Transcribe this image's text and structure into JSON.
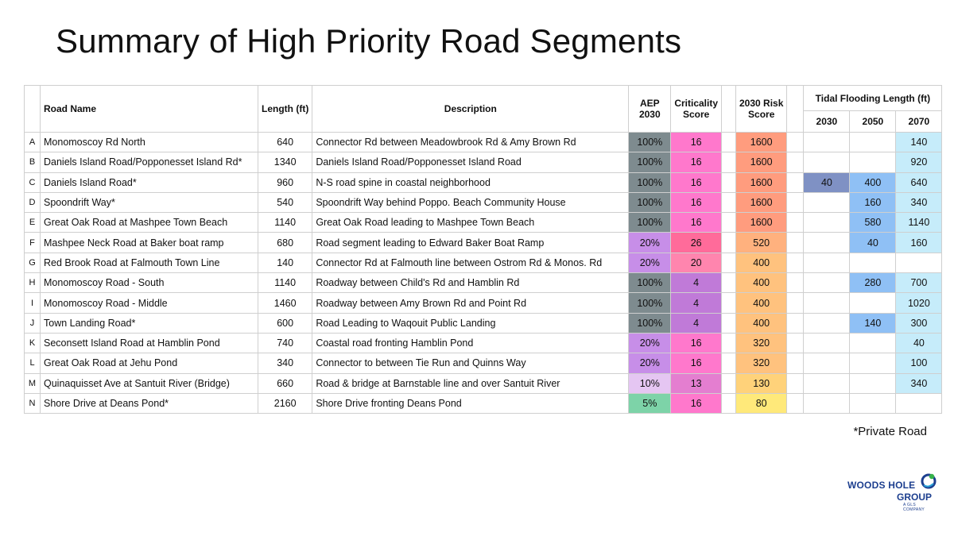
{
  "title": "Summary of High Priority Road Segments",
  "colors": {
    "aep_100": "#7e8b8f",
    "aep_20": "#c78ee8",
    "aep_10": "#e5c6f2",
    "aep_5": "#7dd3a8",
    "crit_16": "#ff78cc",
    "crit_26": "#ff6b9a",
    "crit_20": "#ff85ae",
    "crit_4": "#c07ad8",
    "crit_13": "#e47ed0",
    "risk_1600": "#ff9c7e",
    "risk_520": "#ffb17e",
    "risk_400": "#ffc27e",
    "risk_320": "#ffc27e",
    "risk_130": "#ffd27a",
    "risk_80": "#ffe97a",
    "tf_dark": "#7f91c4",
    "tf_mid": "#8fc0f5",
    "tf_light": "#c6ecfa"
  },
  "headers": {
    "road_name": "Road Name",
    "length": "Length (ft)",
    "description": "Description",
    "aep_line1": "AEP",
    "aep_line2": "2030",
    "crit_line1": "Criticality",
    "crit_line2": "Score",
    "risk_line1": "2030 Risk",
    "risk_line2": "Score",
    "tidal": "Tidal Flooding Length (ft)",
    "y2030": "2030",
    "y2050": "2050",
    "y2070": "2070"
  },
  "rows": [
    {
      "id": "A",
      "name": "Monomoscoy Rd North",
      "length": "640",
      "desc": "Connector Rd between Meadowbrook Rd & Amy Brown Rd",
      "aep": "100%",
      "crit": "16",
      "risk": "1600",
      "t2030": "",
      "t2050": "",
      "t2070": "140"
    },
    {
      "id": "B",
      "name": "Daniels Island Road/Popponesset Island Rd*",
      "length": "1340",
      "desc": "Daniels Island Road/Popponesset Island Road",
      "aep": "100%",
      "crit": "16",
      "risk": "1600",
      "t2030": "",
      "t2050": "",
      "t2070": "920"
    },
    {
      "id": "C",
      "name": "Daniels Island Road*",
      "length": "960",
      "desc": "N-S road spine in coastal neighborhood",
      "aep": "100%",
      "crit": "16",
      "risk": "1600",
      "t2030": "40",
      "t2050": "400",
      "t2070": "640"
    },
    {
      "id": "D",
      "name": "Spoondrift Way*",
      "length": "540",
      "desc": "Spoondrift Way behind Poppo. Beach Community House",
      "aep": "100%",
      "crit": "16",
      "risk": "1600",
      "t2030": "",
      "t2050": "160",
      "t2070": "340"
    },
    {
      "id": "E",
      "name": "Great Oak Road at Mashpee Town Beach",
      "length": "1140",
      "desc": "Great Oak Road leading to Mashpee Town Beach",
      "aep": "100%",
      "crit": "16",
      "risk": "1600",
      "t2030": "",
      "t2050": "580",
      "t2070": "1140"
    },
    {
      "id": "F",
      "name": "Mashpee Neck Road at Baker boat ramp",
      "length": "680",
      "desc": "Road segment leading  to Edward Baker Boat Ramp",
      "aep": "20%",
      "crit": "26",
      "risk": "520",
      "t2030": "",
      "t2050": "40",
      "t2070": "160"
    },
    {
      "id": "G",
      "name": "Red Brook Road at Falmouth Town Line",
      "length": "140",
      "desc": "Connector Rd at Falmouth line between Ostrom Rd & Monos. Rd",
      "aep": "20%",
      "crit": "20",
      "risk": "400",
      "t2030": "",
      "t2050": "",
      "t2070": ""
    },
    {
      "id": "H",
      "name": "Monomoscoy Road - South",
      "length": "1140",
      "desc": "Roadway between Child's Rd and Hamblin Rd",
      "aep": "100%",
      "crit": "4",
      "risk": "400",
      "t2030": "",
      "t2050": "280",
      "t2070": "700"
    },
    {
      "id": "I",
      "name": "Monomoscoy Road - Middle",
      "length": "1460",
      "desc": "Roadway between Amy Brown Rd and Point Rd",
      "aep": "100%",
      "crit": "4",
      "risk": "400",
      "t2030": "",
      "t2050": "",
      "t2070": "1020"
    },
    {
      "id": "J",
      "name": "Town Landing Road*",
      "length": "600",
      "desc": "Road Leading to Waqouit Public Landing",
      "aep": "100%",
      "crit": "4",
      "risk": "400",
      "t2030": "",
      "t2050": "140",
      "t2070": "300"
    },
    {
      "id": "K",
      "name": "Seconsett Island Road at Hamblin Pond",
      "length": "740",
      "desc": "Coastal road fronting Hamblin Pond",
      "aep": "20%",
      "crit": "16",
      "risk": "320",
      "t2030": "",
      "t2050": "",
      "t2070": "40"
    },
    {
      "id": "L",
      "name": "Great Oak Road at Jehu Pond",
      "length": "340",
      "desc": "Connector to between Tie Run and Quinns Way",
      "aep": "20%",
      "crit": "16",
      "risk": "320",
      "t2030": "",
      "t2050": "",
      "t2070": "100"
    },
    {
      "id": "M",
      "name": "Quinaquisset Ave at Santuit River (Bridge)",
      "length": "660",
      "desc": "Road & bridge at Barnstable line and over Santuit River",
      "aep": "10%",
      "crit": "13",
      "risk": "130",
      "t2030": "",
      "t2050": "",
      "t2070": "340"
    },
    {
      "id": "N",
      "name": "Shore Drive at Deans Pond*",
      "length": "2160",
      "desc": "Shore Drive fronting Deans Pond",
      "aep": "5%",
      "crit": "16",
      "risk": "80",
      "t2030": "",
      "t2050": "",
      "t2070": ""
    }
  ],
  "footnote": "*Private Road",
  "logo": {
    "line1": "WOODS HOLE",
    "line2": "GROUP",
    "line3": "A GLS COMPANY",
    "icon": "woods-hole-group-logo-icon"
  }
}
